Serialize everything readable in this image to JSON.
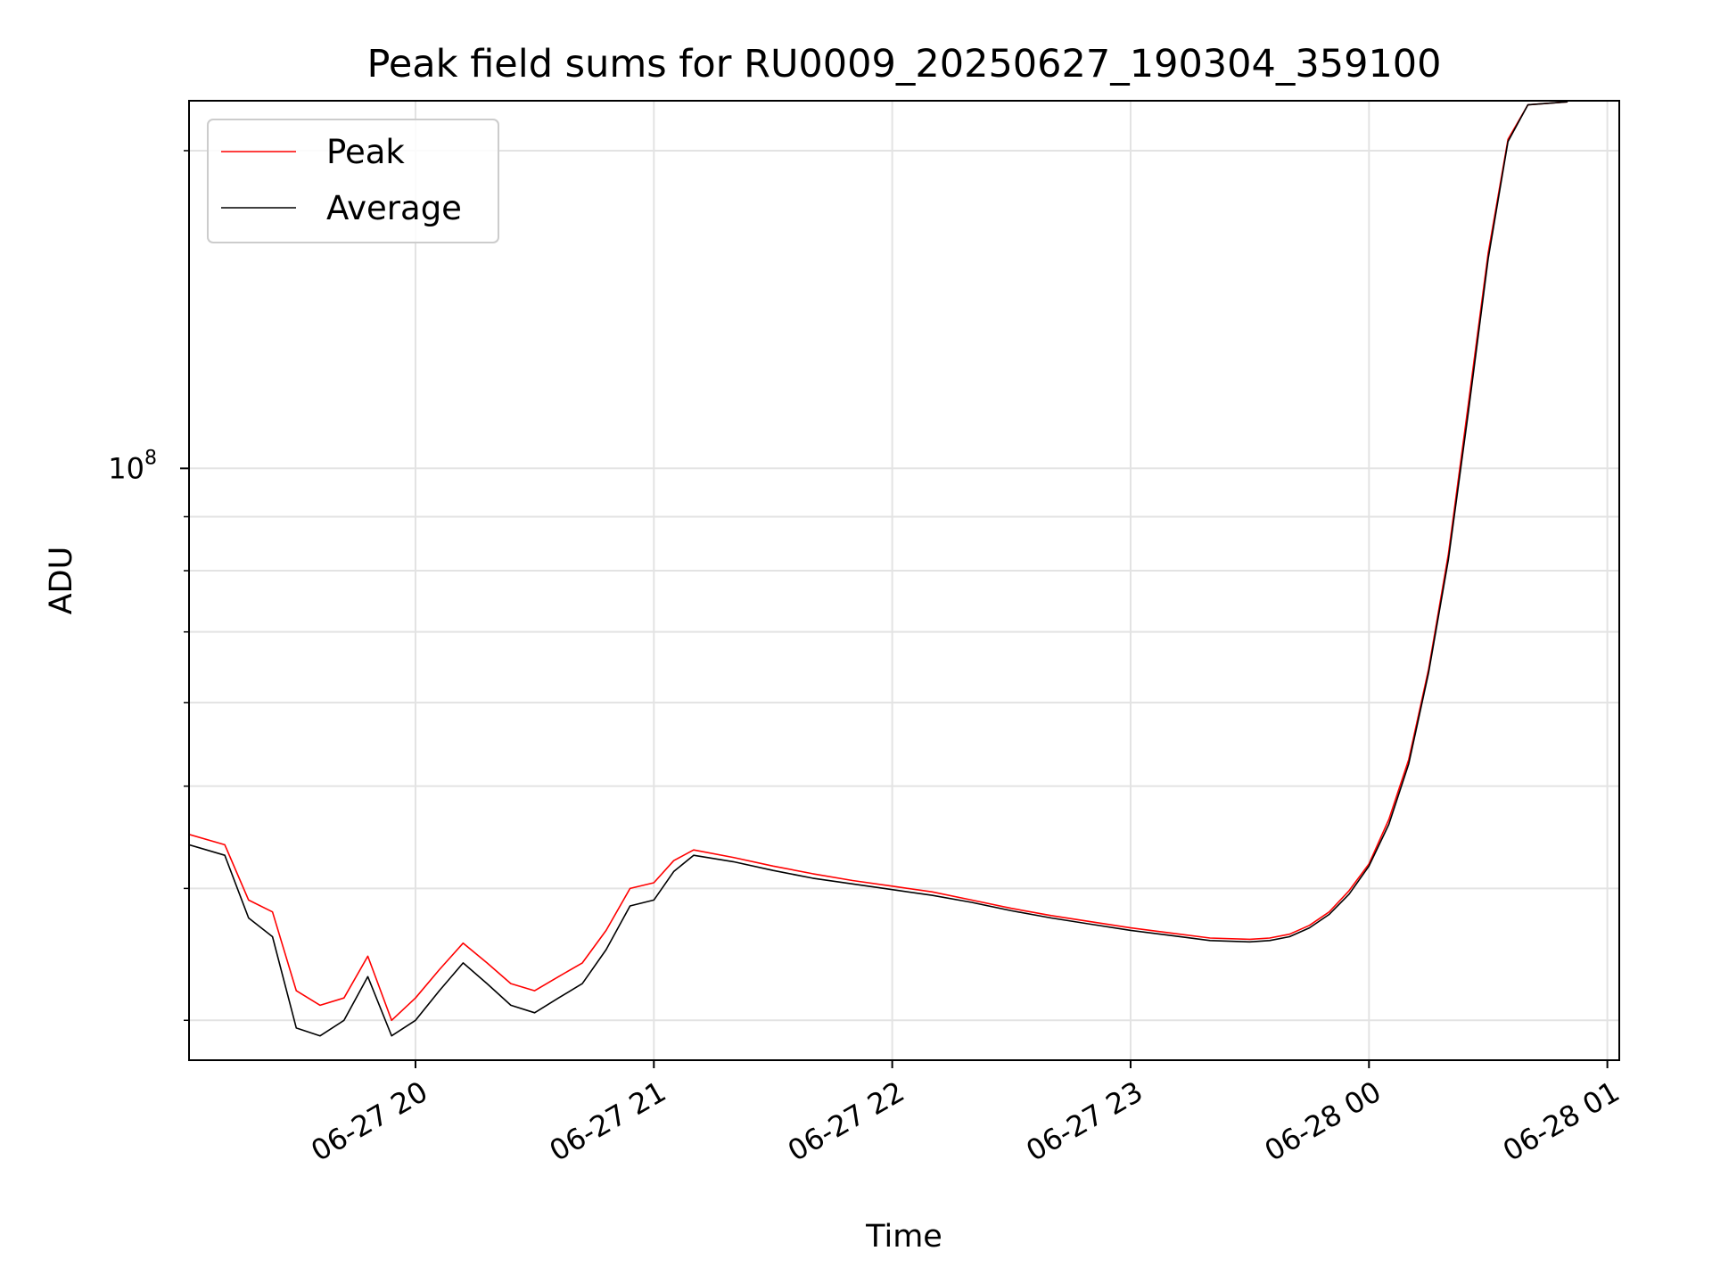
{
  "chart_data": {
    "type": "line",
    "title": "Peak field sums for RU0009_20250627_190304_359100",
    "xlabel": "Time",
    "ylabel": "ADU",
    "x_ticks": [
      "06-27 20",
      "06-27 21",
      "06-27 22",
      "06-27 23",
      "06-28 00",
      "06-28 01"
    ],
    "x_tick_times": [
      "2025-06-27 20:00",
      "2025-06-27 21:00",
      "2025-06-27 22:00",
      "2025-06-27 23:00",
      "2025-06-28 00:00",
      "2025-06-28 01:00"
    ],
    "y_scale": "log",
    "y_tick_base": "10",
    "y_tick_exponent": "8",
    "y_tick_value": 100000000,
    "xlim": [
      "2025-06-27 19:03",
      "2025-06-28 01:03"
    ],
    "ylim": [
      27500000,
      223000000
    ],
    "grid": true,
    "legend": "top-left",
    "series": [
      {
        "name": "Peak",
        "color": "#ff0000",
        "points": [
          [
            "2025-06-27 19:03",
            45000000
          ],
          [
            "2025-06-27 19:12",
            44000000
          ],
          [
            "2025-06-27 19:18",
            39000000
          ],
          [
            "2025-06-27 19:24",
            38000000
          ],
          [
            "2025-06-27 19:30",
            32000000
          ],
          [
            "2025-06-27 19:36",
            31000000
          ],
          [
            "2025-06-27 19:42",
            31500000
          ],
          [
            "2025-06-27 19:48",
            34500000
          ],
          [
            "2025-06-27 19:54",
            30000000
          ],
          [
            "2025-06-27 20:00",
            31500000
          ],
          [
            "2025-06-27 20:06",
            33500000
          ],
          [
            "2025-06-27 20:12",
            35500000
          ],
          [
            "2025-06-27 20:18",
            34000000
          ],
          [
            "2025-06-27 20:24",
            32500000
          ],
          [
            "2025-06-27 20:30",
            32000000
          ],
          [
            "2025-06-27 20:36",
            33000000
          ],
          [
            "2025-06-27 20:42",
            34000000
          ],
          [
            "2025-06-27 20:48",
            36500000
          ],
          [
            "2025-06-27 20:54",
            40000000
          ],
          [
            "2025-06-27 21:00",
            40500000
          ],
          [
            "2025-06-27 21:05",
            42500000
          ],
          [
            "2025-06-27 21:10",
            43500000
          ],
          [
            "2025-06-27 21:20",
            42800000
          ],
          [
            "2025-06-27 21:30",
            42000000
          ],
          [
            "2025-06-27 21:40",
            41300000
          ],
          [
            "2025-06-27 21:50",
            40700000
          ],
          [
            "2025-06-27 22:00",
            40200000
          ],
          [
            "2025-06-27 22:10",
            39700000
          ],
          [
            "2025-06-27 22:20",
            39000000
          ],
          [
            "2025-06-27 22:30",
            38300000
          ],
          [
            "2025-06-27 22:40",
            37700000
          ],
          [
            "2025-06-27 22:50",
            37200000
          ],
          [
            "2025-06-27 23:00",
            36700000
          ],
          [
            "2025-06-27 23:10",
            36300000
          ],
          [
            "2025-06-27 23:20",
            35900000
          ],
          [
            "2025-06-27 23:30",
            35800000
          ],
          [
            "2025-06-27 23:35",
            35900000
          ],
          [
            "2025-06-27 23:40",
            36200000
          ],
          [
            "2025-06-27 23:45",
            36900000
          ],
          [
            "2025-06-27 23:50",
            38000000
          ],
          [
            "2025-06-27 23:55",
            39800000
          ],
          [
            "2025-06-28 00:00",
            42200000
          ],
          [
            "2025-06-28 00:05",
            46500000
          ],
          [
            "2025-06-28 00:10",
            53000000
          ],
          [
            "2025-06-28 00:15",
            64500000
          ],
          [
            "2025-06-28 00:20",
            83000000
          ],
          [
            "2025-06-28 00:25",
            115000000
          ],
          [
            "2025-06-28 00:30",
            160000000
          ],
          [
            "2025-06-28 00:35",
            205000000
          ],
          [
            "2025-06-28 00:40",
            221000000
          ],
          [
            "2025-06-28 00:50",
            222500000
          ]
        ]
      },
      {
        "name": "Average",
        "color": "#000000",
        "points": [
          [
            "2025-06-27 19:03",
            44000000
          ],
          [
            "2025-06-27 19:12",
            43000000
          ],
          [
            "2025-06-27 19:18",
            37500000
          ],
          [
            "2025-06-27 19:24",
            36000000
          ],
          [
            "2025-06-27 19:30",
            29500000
          ],
          [
            "2025-06-27 19:36",
            29000000
          ],
          [
            "2025-06-27 19:42",
            30000000
          ],
          [
            "2025-06-27 19:48",
            33000000
          ],
          [
            "2025-06-27 19:54",
            29000000
          ],
          [
            "2025-06-27 20:00",
            30000000
          ],
          [
            "2025-06-27 20:06",
            32000000
          ],
          [
            "2025-06-27 20:12",
            34000000
          ],
          [
            "2025-06-27 20:18",
            32500000
          ],
          [
            "2025-06-27 20:24",
            31000000
          ],
          [
            "2025-06-27 20:30",
            30500000
          ],
          [
            "2025-06-27 20:36",
            31500000
          ],
          [
            "2025-06-27 20:42",
            32500000
          ],
          [
            "2025-06-27 20:48",
            35000000
          ],
          [
            "2025-06-27 20:54",
            38500000
          ],
          [
            "2025-06-27 21:00",
            39000000
          ],
          [
            "2025-06-27 21:05",
            41500000
          ],
          [
            "2025-06-27 21:10",
            43000000
          ],
          [
            "2025-06-27 21:20",
            42400000
          ],
          [
            "2025-06-27 21:30",
            41600000
          ],
          [
            "2025-06-27 21:40",
            40900000
          ],
          [
            "2025-06-27 21:50",
            40400000
          ],
          [
            "2025-06-27 22:00",
            39900000
          ],
          [
            "2025-06-27 22:10",
            39400000
          ],
          [
            "2025-06-27 22:20",
            38800000
          ],
          [
            "2025-06-27 22:30",
            38100000
          ],
          [
            "2025-06-27 22:40",
            37500000
          ],
          [
            "2025-06-27 22:50",
            37000000
          ],
          [
            "2025-06-27 23:00",
            36500000
          ],
          [
            "2025-06-27 23:10",
            36100000
          ],
          [
            "2025-06-27 23:20",
            35700000
          ],
          [
            "2025-06-27 23:30",
            35600000
          ],
          [
            "2025-06-27 23:35",
            35700000
          ],
          [
            "2025-06-27 23:40",
            36000000
          ],
          [
            "2025-06-27 23:45",
            36700000
          ],
          [
            "2025-06-27 23:50",
            37800000
          ],
          [
            "2025-06-27 23:55",
            39500000
          ],
          [
            "2025-06-28 00:00",
            42000000
          ],
          [
            "2025-06-28 00:05",
            46000000
          ],
          [
            "2025-06-28 00:10",
            52500000
          ],
          [
            "2025-06-28 00:15",
            64000000
          ],
          [
            "2025-06-28 00:20",
            82000000
          ],
          [
            "2025-06-28 00:25",
            113000000
          ],
          [
            "2025-06-28 00:30",
            158000000
          ],
          [
            "2025-06-28 00:35",
            204000000
          ],
          [
            "2025-06-28 00:40",
            221000000
          ],
          [
            "2025-06-28 00:50",
            222500000
          ]
        ]
      }
    ]
  }
}
